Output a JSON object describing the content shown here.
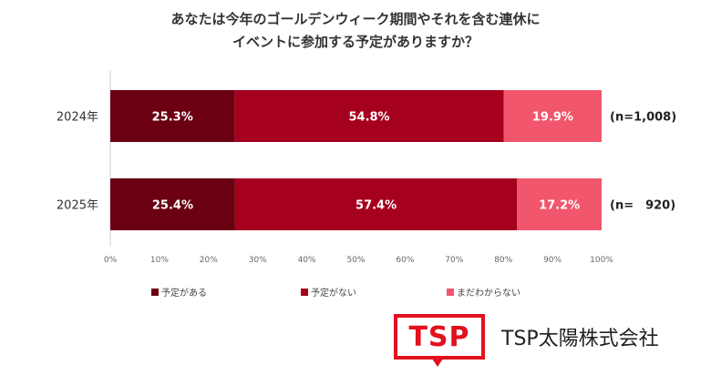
{
  "title_line1": "あなたは今年のゴールデンウィーク期間やそれを含む連休に",
  "title_line2": "イベントに参加する予定がありますか？",
  "logo_text": "TSP",
  "company_name": "TSP太陽株式会社",
  "chart_data": {
    "type": "bar",
    "orientation": "horizontal",
    "stacked": true,
    "title": "あなたは今年のゴールデンウィーク期間やそれを含む連休にイベントに参加する予定がありますか？",
    "categories": [
      "2024年",
      "2025年"
    ],
    "series": [
      {
        "name": "予定がある",
        "values": [
          25.3,
          25.4
        ],
        "labels": [
          "25.3%",
          "25.4%"
        ],
        "color": "#6b0012"
      },
      {
        "name": "予定がない",
        "values": [
          54.8,
          57.4
        ],
        "labels": [
          "54.8%",
          "57.4%"
        ],
        "color": "#a5001d"
      },
      {
        "name": "まだわからない",
        "values": [
          19.9,
          17.2
        ],
        "labels": [
          "19.9%",
          "17.2%"
        ],
        "color": "#f2566d"
      }
    ],
    "n_labels": [
      "(n=1,008)",
      "(n=　920)"
    ],
    "xlim": [
      0,
      100
    ],
    "x_ticks": [
      "0%",
      "10%",
      "20%",
      "30%",
      "40%",
      "50%",
      "60%",
      "70%",
      "80%",
      "90%",
      "100%"
    ],
    "legend_position": "bottom",
    "grid": false
  }
}
